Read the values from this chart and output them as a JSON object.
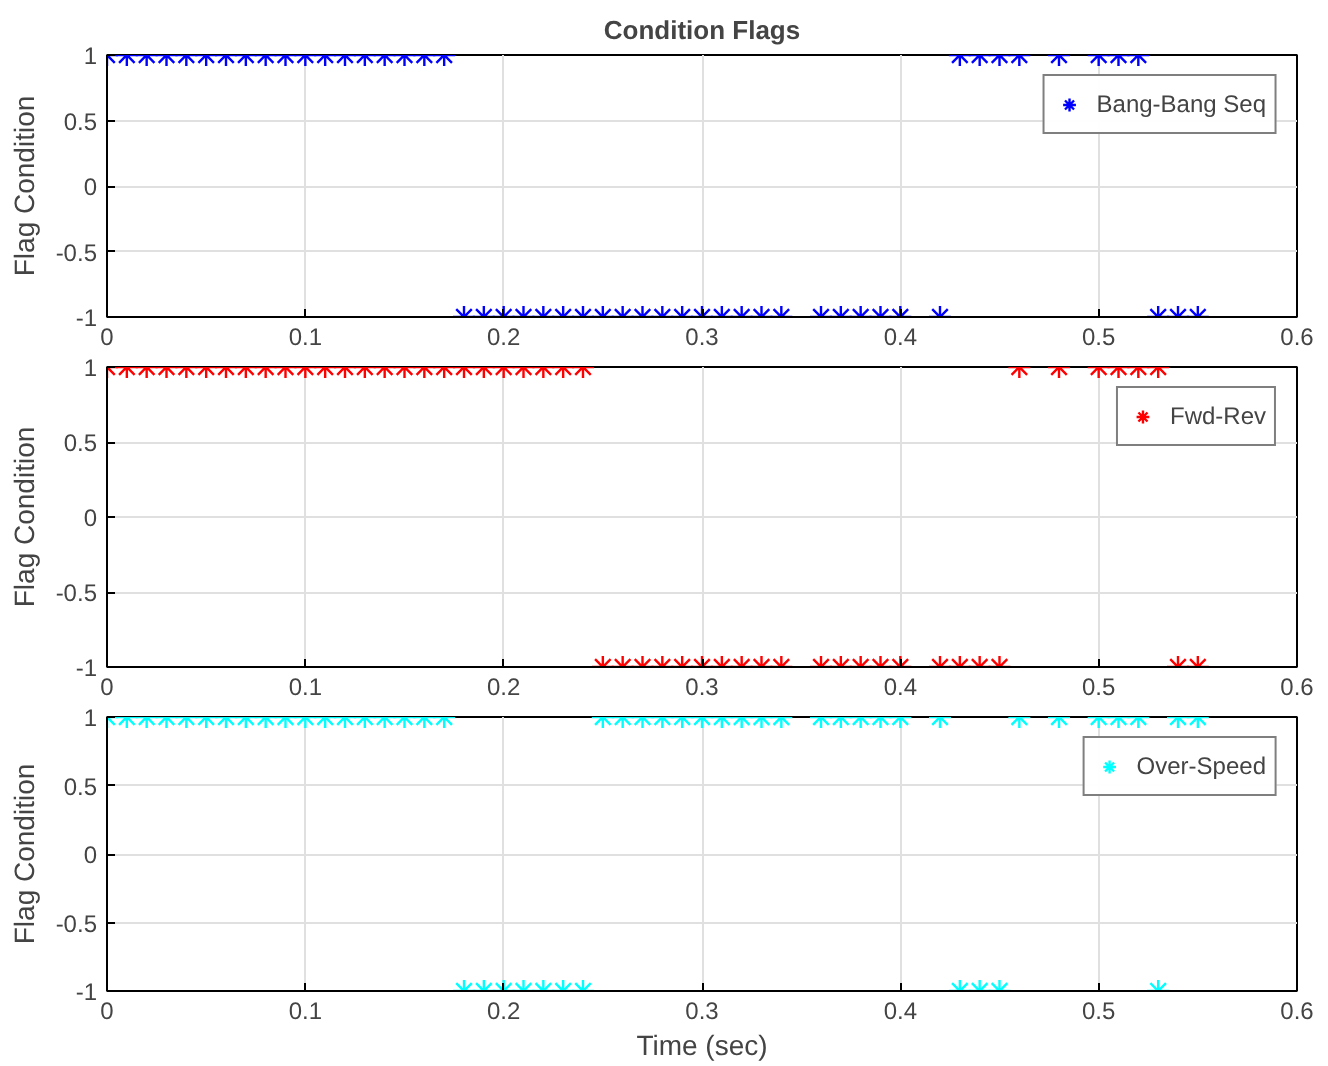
{
  "chart_data": [
    {
      "type": "scatter",
      "title": "Condition Flags",
      "ylabel": "Flag Condition",
      "x": [
        0,
        0.01,
        0.02,
        0.03,
        0.04,
        0.05,
        0.06,
        0.07,
        0.08,
        0.09,
        0.1,
        0.11,
        0.12,
        0.13,
        0.14,
        0.15,
        0.16,
        0.17,
        0.18,
        0.19,
        0.2,
        0.21,
        0.22,
        0.23,
        0.24,
        0.25,
        0.26,
        0.27,
        0.28,
        0.29,
        0.3,
        0.31,
        0.32,
        0.33,
        0.34,
        0.36,
        0.37,
        0.38,
        0.39,
        0.4,
        0.42,
        0.43,
        0.44,
        0.45,
        0.46,
        0.48,
        0.5,
        0.51,
        0.52,
        0.53,
        0.54,
        0.55
      ],
      "series": [
        {
          "name": "Bang-Bang Seq",
          "color": "#0000ff",
          "values": [
            1,
            1,
            1,
            1,
            1,
            1,
            1,
            1,
            1,
            1,
            1,
            1,
            1,
            1,
            1,
            1,
            1,
            1,
            -1,
            -1,
            -1,
            -1,
            -1,
            -1,
            -1,
            -1,
            -1,
            -1,
            -1,
            -1,
            -1,
            -1,
            -1,
            -1,
            -1,
            -1,
            -1,
            -1,
            -1,
            -1,
            -1,
            1,
            1,
            1,
            1,
            1,
            1,
            1,
            1,
            -1,
            -1,
            -1
          ]
        }
      ],
      "xlim": [
        0,
        0.6
      ],
      "xticks": [
        0,
        0.1,
        0.2,
        0.3,
        0.4,
        0.5,
        0.6
      ],
      "ylim": [
        -1,
        1
      ],
      "yticks": [
        -1,
        -0.5,
        0,
        0.5,
        1
      ],
      "grid": true,
      "legend": "top right",
      "marker": "cross"
    },
    {
      "type": "scatter",
      "ylabel": "Flag Condition",
      "x": [
        0,
        0.01,
        0.02,
        0.03,
        0.04,
        0.05,
        0.06,
        0.07,
        0.08,
        0.09,
        0.1,
        0.11,
        0.12,
        0.13,
        0.14,
        0.15,
        0.16,
        0.17,
        0.18,
        0.19,
        0.2,
        0.21,
        0.22,
        0.23,
        0.24,
        0.25,
        0.26,
        0.27,
        0.28,
        0.29,
        0.3,
        0.31,
        0.32,
        0.33,
        0.34,
        0.36,
        0.37,
        0.38,
        0.39,
        0.4,
        0.42,
        0.43,
        0.44,
        0.45,
        0.46,
        0.48,
        0.5,
        0.51,
        0.52,
        0.53,
        0.54,
        0.55
      ],
      "series": [
        {
          "name": "Fwd-Rev",
          "color": "#ff0000",
          "values": [
            1,
            1,
            1,
            1,
            1,
            1,
            1,
            1,
            1,
            1,
            1,
            1,
            1,
            1,
            1,
            1,
            1,
            1,
            1,
            1,
            1,
            1,
            1,
            1,
            1,
            -1,
            -1,
            -1,
            -1,
            -1,
            -1,
            -1,
            -1,
            -1,
            -1,
            -1,
            -1,
            -1,
            -1,
            -1,
            -1,
            -1,
            -1,
            -1,
            1,
            1,
            1,
            1,
            1,
            1,
            -1,
            -1
          ]
        }
      ],
      "xlim": [
        0,
        0.6
      ],
      "xticks": [
        0,
        0.1,
        0.2,
        0.3,
        0.4,
        0.5,
        0.6
      ],
      "ylim": [
        -1,
        1
      ],
      "yticks": [
        -1,
        -0.5,
        0,
        0.5,
        1
      ],
      "grid": true,
      "legend": "top right",
      "marker": "cross"
    },
    {
      "type": "scatter",
      "xlabel": "Time (sec)",
      "ylabel": "Flag Condition",
      "x": [
        0,
        0.01,
        0.02,
        0.03,
        0.04,
        0.05,
        0.06,
        0.07,
        0.08,
        0.09,
        0.1,
        0.11,
        0.12,
        0.13,
        0.14,
        0.15,
        0.16,
        0.17,
        0.18,
        0.19,
        0.2,
        0.21,
        0.22,
        0.23,
        0.24,
        0.25,
        0.26,
        0.27,
        0.28,
        0.29,
        0.3,
        0.31,
        0.32,
        0.33,
        0.34,
        0.36,
        0.37,
        0.38,
        0.39,
        0.4,
        0.42,
        0.43,
        0.44,
        0.45,
        0.46,
        0.48,
        0.5,
        0.51,
        0.52,
        0.53,
        0.54,
        0.55
      ],
      "series": [
        {
          "name": "Over-Speed",
          "color": "#00ffff",
          "values": [
            1,
            1,
            1,
            1,
            1,
            1,
            1,
            1,
            1,
            1,
            1,
            1,
            1,
            1,
            1,
            1,
            1,
            1,
            -1,
            -1,
            -1,
            -1,
            -1,
            -1,
            -1,
            1,
            1,
            1,
            1,
            1,
            1,
            1,
            1,
            1,
            1,
            1,
            1,
            1,
            1,
            1,
            1,
            -1,
            -1,
            -1,
            1,
            1,
            1,
            1,
            1,
            -1,
            1,
            1
          ]
        }
      ],
      "xlim": [
        0,
        0.6
      ],
      "xticks": [
        0,
        0.1,
        0.2,
        0.3,
        0.4,
        0.5,
        0.6
      ],
      "ylim": [
        -1,
        1
      ],
      "yticks": [
        -1,
        -0.5,
        0,
        0.5,
        1
      ],
      "grid": true,
      "legend": "top right",
      "marker": "cross"
    }
  ]
}
